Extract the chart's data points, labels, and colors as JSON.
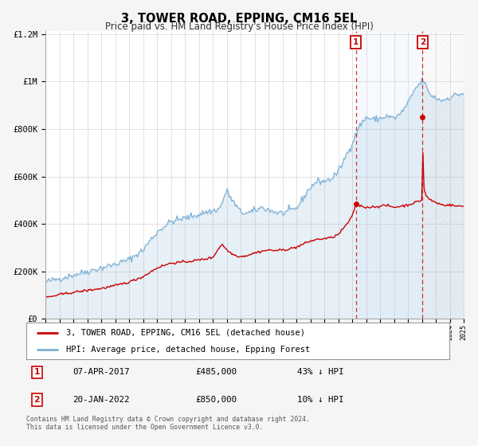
{
  "title": "3, TOWER ROAD, EPPING, CM16 5EL",
  "subtitle": "Price paid vs. HM Land Registry's House Price Index (HPI)",
  "legend_label_red": "3, TOWER ROAD, EPPING, CM16 5EL (detached house)",
  "legend_label_blue": "HPI: Average price, detached house, Epping Forest",
  "annotation1_label": "1",
  "annotation1_date": "07-APR-2017",
  "annotation1_price": "£485,000",
  "annotation1_hpi": "43% ↓ HPI",
  "annotation2_label": "2",
  "annotation2_date": "20-JAN-2022",
  "annotation2_price": "£850,000",
  "annotation2_hpi": "10% ↓ HPI",
  "footer": "Contains HM Land Registry data © Crown copyright and database right 2024.\nThis data is licensed under the Open Government Licence v3.0.",
  "xmin": 1995,
  "xmax": 2025,
  "ymin": 0,
  "ymax": 1200000,
  "yticks": [
    0,
    200000,
    400000,
    600000,
    800000,
    1000000,
    1200000
  ],
  "ytick_labels": [
    "£0",
    "£200K",
    "£400K",
    "£600K",
    "£800K",
    "£1M",
    "£1.2M"
  ],
  "vline1_x": 2017.27,
  "vline2_x": 2022.05,
  "sale1_x": 2017.27,
  "sale1_y": 485000,
  "sale2_x": 2022.05,
  "sale2_y": 850000,
  "red_color": "#cc0000",
  "blue_color": "#7aafd4",
  "vline_color": "#cc0000",
  "background_color": "#f5f5f5",
  "plot_bg_color": "#ffffff",
  "hpi_anchors_x": [
    1995.0,
    1995.5,
    1996.0,
    1997.0,
    1998.0,
    1999.0,
    2000.0,
    2001.0,
    2002.0,
    2002.5,
    2003.0,
    2003.5,
    2004.0,
    2005.0,
    2006.0,
    2006.5,
    2007.0,
    2007.5,
    2008.0,
    2008.5,
    2009.0,
    2009.5,
    2010.0,
    2010.5,
    2011.0,
    2011.5,
    2012.0,
    2012.5,
    2013.0,
    2013.5,
    2014.0,
    2014.5,
    2015.0,
    2015.5,
    2016.0,
    2016.5,
    2017.0,
    2017.5,
    2018.0,
    2018.5,
    2019.0,
    2019.5,
    2020.0,
    2020.5,
    2021.0,
    2021.3,
    2021.5,
    2021.7,
    2022.0,
    2022.1,
    2022.3,
    2022.5,
    2023.0,
    2023.5,
    2024.0,
    2024.5,
    2025.0
  ],
  "hpi_anchors_y": [
    155000,
    163000,
    170000,
    185000,
    200000,
    215000,
    230000,
    250000,
    290000,
    330000,
    365000,
    390000,
    410000,
    425000,
    440000,
    450000,
    455000,
    465000,
    540000,
    490000,
    450000,
    445000,
    455000,
    470000,
    460000,
    450000,
    445000,
    455000,
    465000,
    510000,
    555000,
    580000,
    580000,
    590000,
    620000,
    680000,
    740000,
    810000,
    850000,
    840000,
    845000,
    855000,
    845000,
    865000,
    910000,
    940000,
    970000,
    980000,
    1000000,
    1010000,
    980000,
    950000,
    930000,
    920000,
    935000,
    945000,
    950000
  ],
  "red_anchors_x": [
    1995.0,
    1995.5,
    1996.0,
    1997.0,
    1998.0,
    1999.0,
    2000.0,
    2001.0,
    2002.0,
    2003.0,
    2004.0,
    2005.0,
    2006.0,
    2007.0,
    2007.4,
    2007.7,
    2008.0,
    2008.5,
    2009.0,
    2009.5,
    2010.0,
    2010.5,
    2011.0,
    2011.5,
    2012.0,
    2012.5,
    2013.0,
    2013.5,
    2014.0,
    2014.5,
    2015.0,
    2015.5,
    2016.0,
    2016.5,
    2017.0,
    2017.27,
    2017.5,
    2018.0,
    2018.5,
    2019.0,
    2019.5,
    2020.0,
    2020.5,
    2021.0,
    2021.5,
    2022.0,
    2022.05,
    2022.1,
    2022.3,
    2022.5,
    2023.0,
    2023.5,
    2024.0,
    2024.5,
    2025.0
  ],
  "red_anchors_y": [
    90000,
    95000,
    102000,
    112000,
    120000,
    128000,
    140000,
    155000,
    178000,
    215000,
    235000,
    240000,
    248000,
    258000,
    295000,
    315000,
    290000,
    270000,
    262000,
    268000,
    278000,
    285000,
    290000,
    288000,
    290000,
    295000,
    302000,
    315000,
    328000,
    335000,
    338000,
    342000,
    355000,
    390000,
    430000,
    485000,
    478000,
    470000,
    472000,
    475000,
    478000,
    470000,
    475000,
    480000,
    490000,
    500000,
    850000,
    560000,
    520000,
    505000,
    490000,
    480000,
    480000,
    475000,
    475000
  ]
}
